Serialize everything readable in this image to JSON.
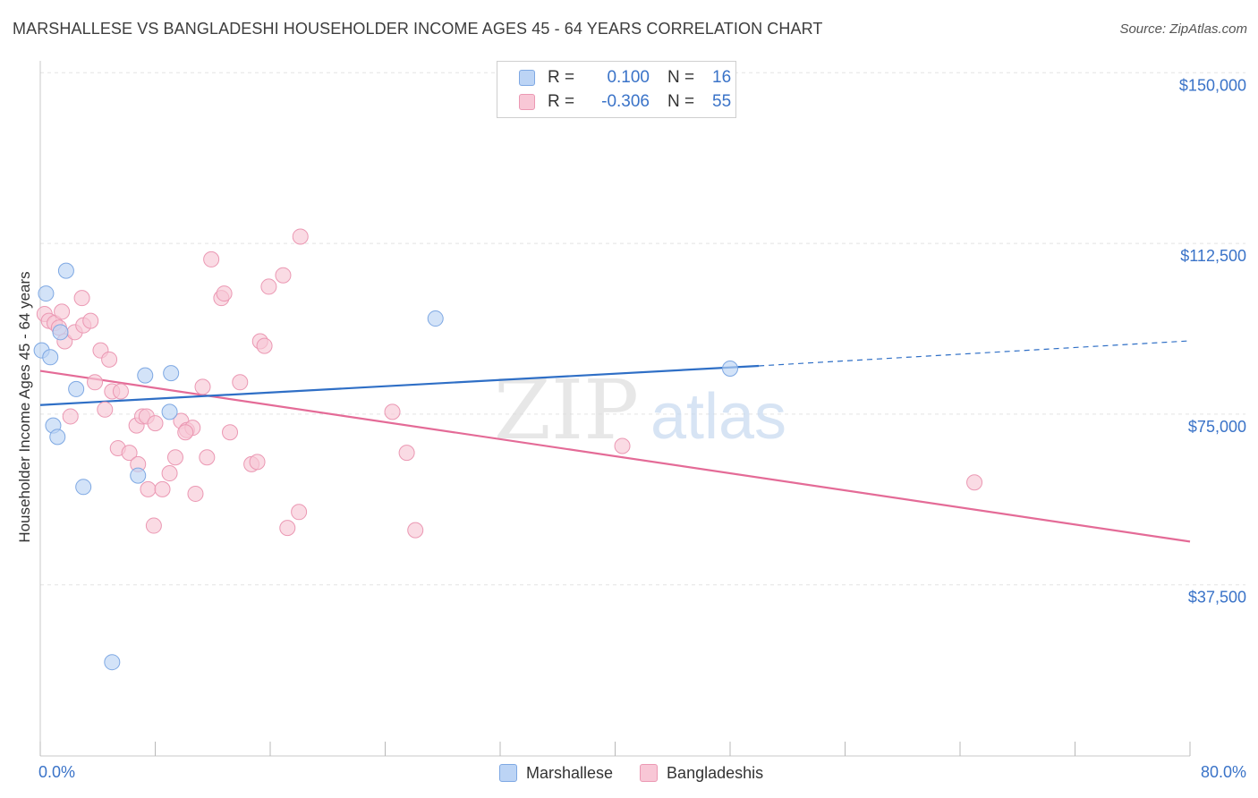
{
  "title": "MARSHALLESE VS BANGLADESHI HOUSEHOLDER INCOME AGES 45 - 64 YEARS CORRELATION CHART",
  "source": "Source: ZipAtlas.com",
  "watermark": {
    "zip": "ZIP",
    "atlas": "atlas"
  },
  "legend": {
    "r_label": "R =",
    "n_label": "N =",
    "rows": [
      {
        "r": "0.100",
        "n": "16"
      },
      {
        "r": "-0.306",
        "n": "55"
      }
    ]
  },
  "bottom_legend": [
    "Marshallese",
    "Bangladeshis"
  ],
  "colors": {
    "blue_fill": "#bcd4f5",
    "blue_stroke": "#7ea8e3",
    "blue_line": "#2f6fc6",
    "pink_fill": "#f8c7d6",
    "pink_stroke": "#eb98b3",
    "pink_line": "#e46b97",
    "tick_text": "#3a73c8",
    "grid": "#e3e3e3"
  },
  "chart_data": {
    "type": "scatter",
    "title": "MARSHALLESE VS BANGLADESHI HOUSEHOLDER INCOME AGES 45 - 64 YEARS CORRELATION CHART",
    "xlabel": "",
    "ylabel": "Householder Income Ages 45 - 64 years",
    "xlim": [
      0,
      80
    ],
    "ylim": [
      0,
      155000
    ],
    "x_tick_labels": [
      "0.0%",
      "80.0%"
    ],
    "y_ticks": [
      37500,
      75000,
      112500,
      150000
    ],
    "y_tick_labels": [
      "$37,500",
      "$75,000",
      "$112,500",
      "$150,000"
    ],
    "grid": true,
    "series": [
      {
        "name": "Marshallese",
        "r": 0.1,
        "n": 16,
        "points": [
          [
            0.1,
            89000
          ],
          [
            0.4,
            101500
          ],
          [
            0.7,
            87500
          ],
          [
            1.4,
            93000
          ],
          [
            1.8,
            106500
          ],
          [
            2.5,
            80500
          ],
          [
            0.9,
            72500
          ],
          [
            1.2,
            70000
          ],
          [
            3.0,
            59000
          ],
          [
            6.8,
            61500
          ],
          [
            7.3,
            83500
          ],
          [
            9.1,
            84000
          ],
          [
            9.0,
            75500
          ],
          [
            5.0,
            20500
          ],
          [
            27.5,
            96000
          ],
          [
            48.0,
            85000
          ]
        ],
        "trend": {
          "x0": 0,
          "y0": 77000,
          "x1": 50,
          "y1": 85600,
          "dash_to_x": 80,
          "dash_to_y": 91100
        }
      },
      {
        "name": "Bangladeshis",
        "r": -0.306,
        "n": 55,
        "points": [
          [
            0.3,
            97000
          ],
          [
            0.6,
            95500
          ],
          [
            1.0,
            95000
          ],
          [
            1.3,
            94000
          ],
          [
            1.5,
            97500
          ],
          [
            1.7,
            91000
          ],
          [
            2.4,
            93000
          ],
          [
            2.9,
            100500
          ],
          [
            3.0,
            94500
          ],
          [
            3.5,
            95500
          ],
          [
            2.1,
            74500
          ],
          [
            3.8,
            82000
          ],
          [
            4.2,
            89000
          ],
          [
            4.8,
            87000
          ],
          [
            4.5,
            76000
          ],
          [
            5.0,
            80000
          ],
          [
            5.6,
            80000
          ],
          [
            5.4,
            67500
          ],
          [
            6.2,
            66500
          ],
          [
            6.7,
            72500
          ],
          [
            7.1,
            74500
          ],
          [
            7.4,
            74500
          ],
          [
            6.8,
            64000
          ],
          [
            8.0,
            73000
          ],
          [
            7.5,
            58500
          ],
          [
            7.9,
            50500
          ],
          [
            8.5,
            58500
          ],
          [
            9.0,
            62000
          ],
          [
            9.4,
            65500
          ],
          [
            9.8,
            73500
          ],
          [
            10.2,
            71500
          ],
          [
            10.6,
            72000
          ],
          [
            10.1,
            71000
          ],
          [
            10.8,
            57500
          ],
          [
            11.3,
            81000
          ],
          [
            11.6,
            65500
          ],
          [
            11.9,
            109000
          ],
          [
            12.6,
            100500
          ],
          [
            12.8,
            101500
          ],
          [
            13.2,
            71000
          ],
          [
            13.9,
            82000
          ],
          [
            14.7,
            64000
          ],
          [
            15.1,
            64500
          ],
          [
            15.3,
            91000
          ],
          [
            15.6,
            90000
          ],
          [
            15.9,
            103000
          ],
          [
            16.9,
            105500
          ],
          [
            17.2,
            50000
          ],
          [
            18.0,
            53500
          ],
          [
            18.1,
            114000
          ],
          [
            24.5,
            75500
          ],
          [
            25.5,
            66500
          ],
          [
            26.1,
            49500
          ],
          [
            40.5,
            68000
          ],
          [
            65.0,
            60000
          ]
        ],
        "trend": {
          "x0": 0,
          "y0": 84500,
          "x1": 80,
          "y1": 47000
        }
      }
    ]
  }
}
